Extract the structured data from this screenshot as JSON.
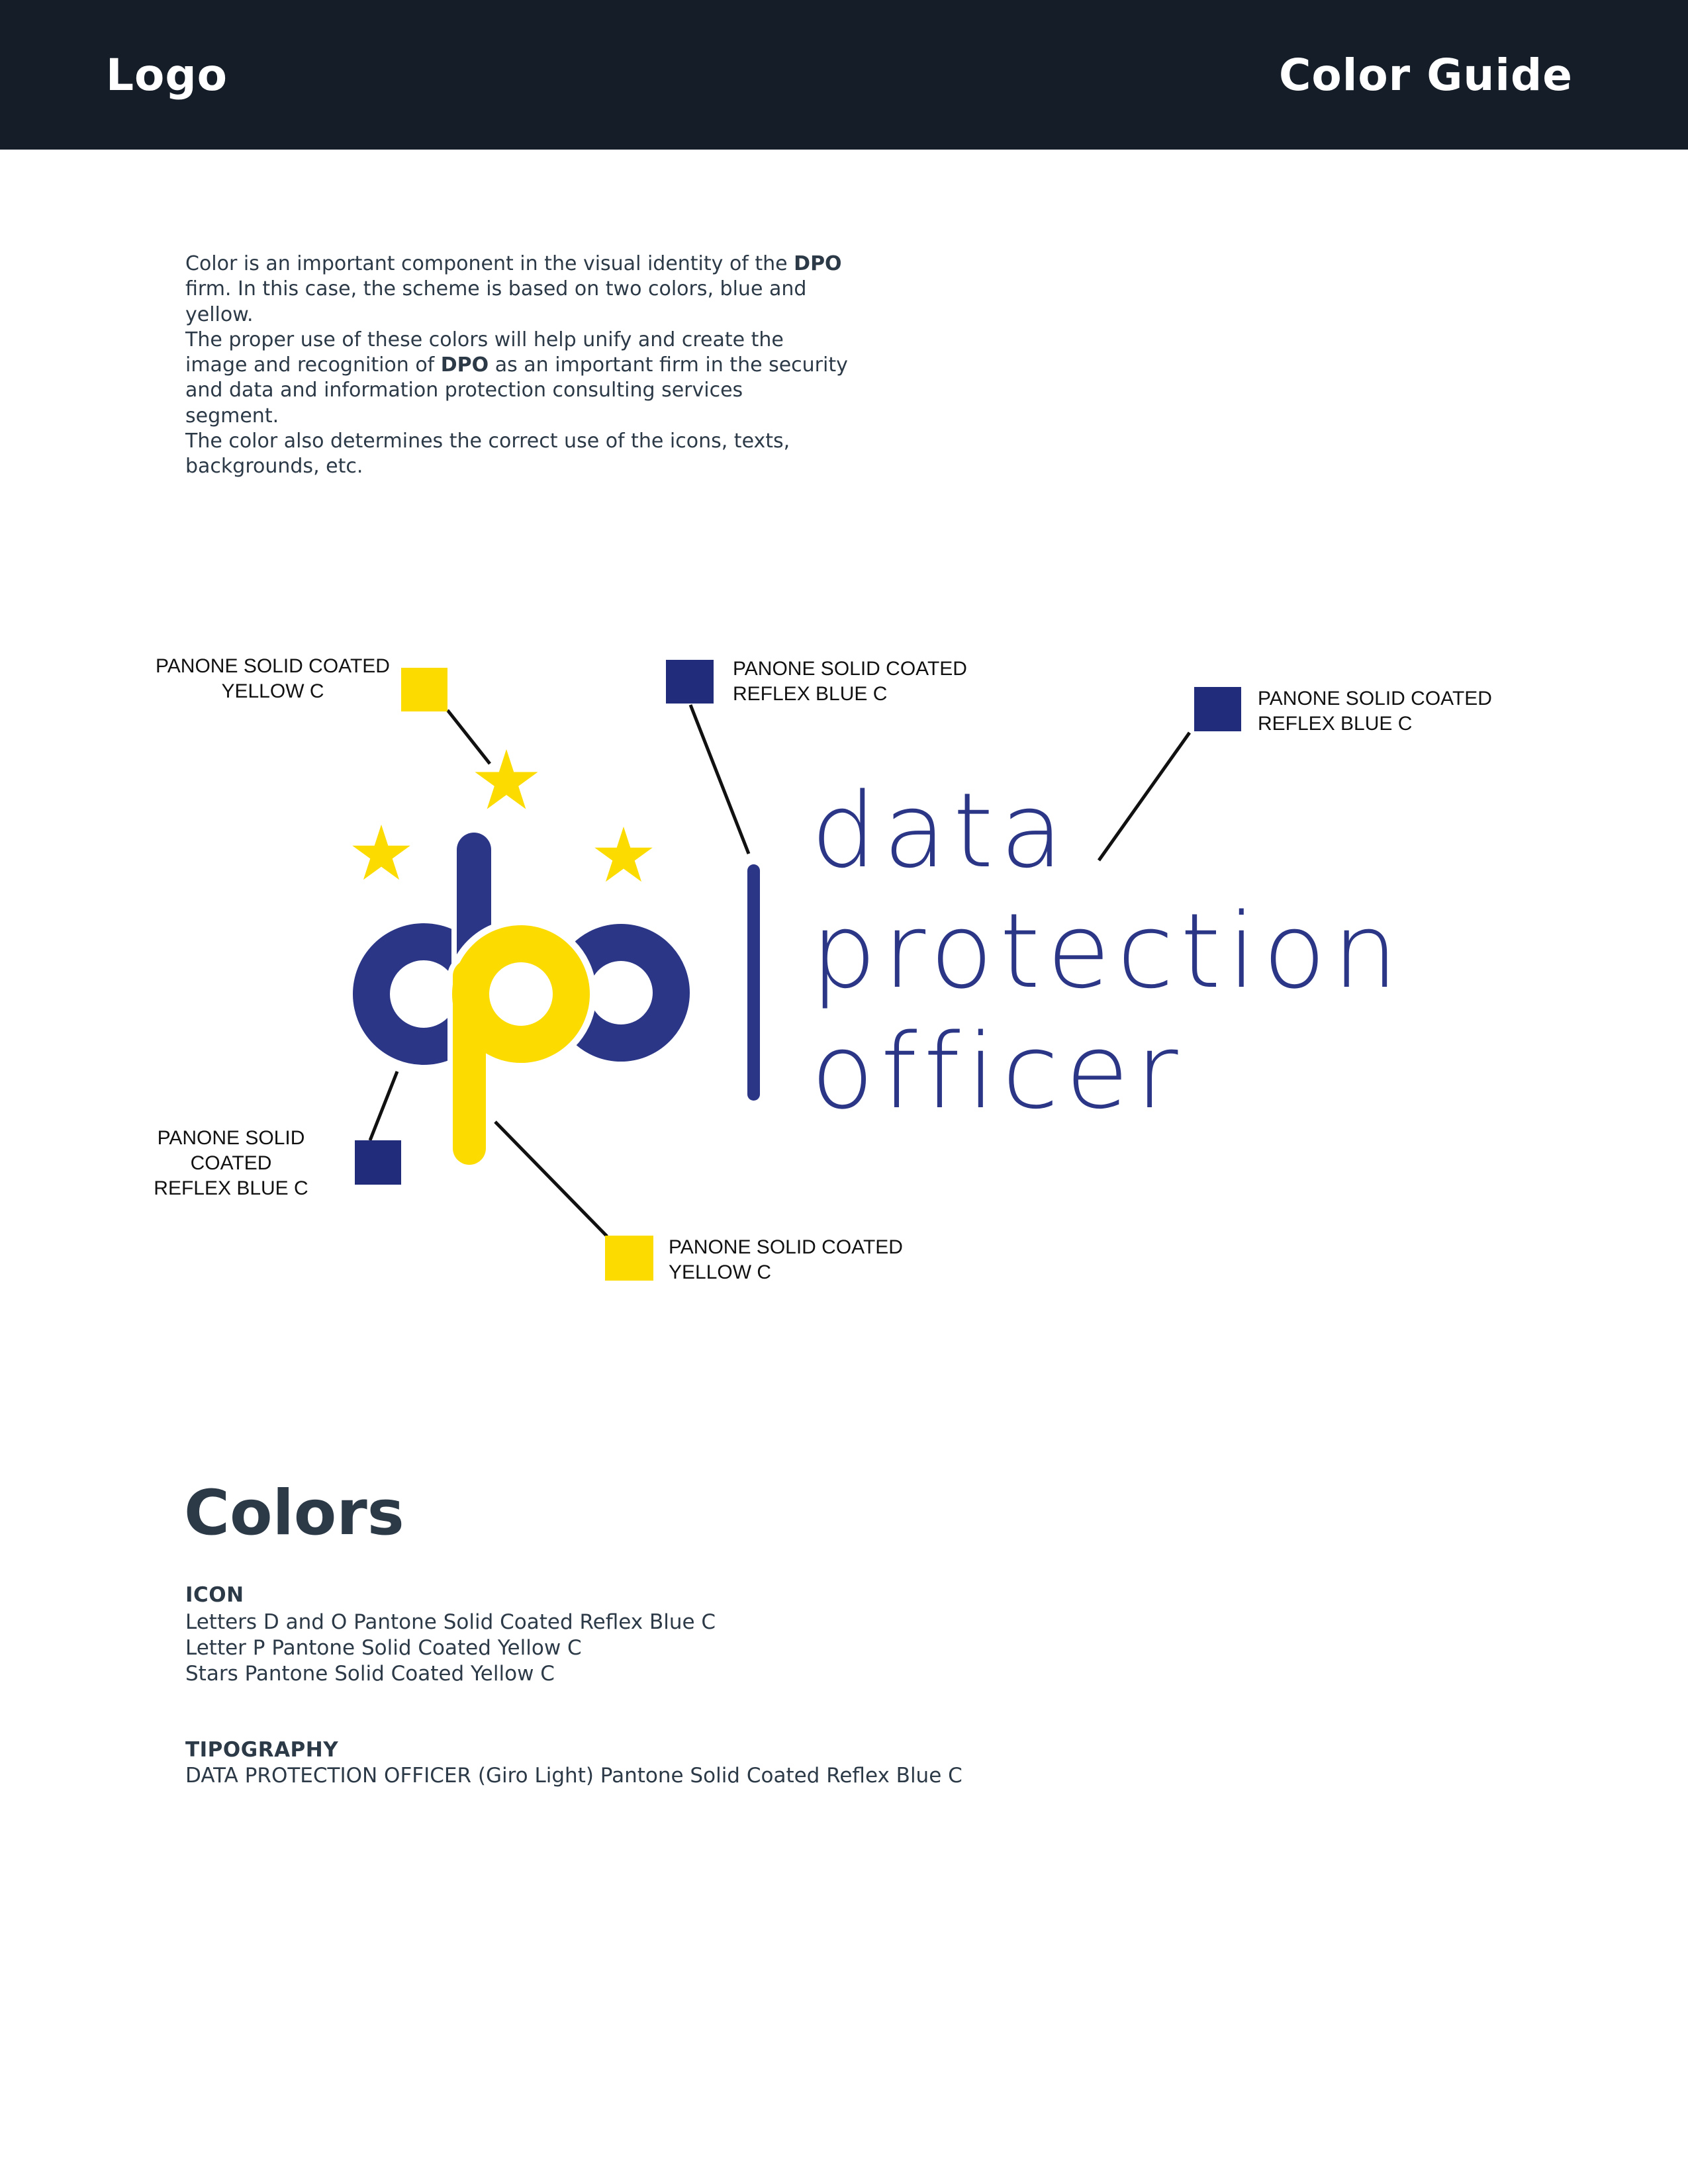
{
  "header": {
    "logo_text": "Logo",
    "title": "Color Guide"
  },
  "intro": {
    "bold_word": "DPO",
    "lines": [
      "Color is an important component in the visual identity of the DPO",
      "firm. In this case, the scheme is based on two colors, blue and",
      "yellow.",
      "The proper use of these colors will help unify and create the",
      "image and recognition of DPO as an important firm in the security",
      "and data and information protection consulting services",
      "segment.",
      "The color also determines the correct use of the icons, texts,",
      "backgrounds, etc."
    ]
  },
  "colors": {
    "header_bg": "#141d28",
    "text_dark": "#2c3947",
    "logo_blue": "#2b3687",
    "swatch_blue": "#212d7b",
    "yellow": "#fcdb00",
    "line_black": "#111111"
  },
  "callouts": [
    {
      "line1": "PANONE SOLID COATED",
      "line2": "YELLOW C",
      "swatch": "yellow"
    },
    {
      "line1": "PANONE SOLID COATED",
      "line2": "REFLEX BLUE C",
      "swatch": "blue"
    },
    {
      "line1": "PANONE SOLID COATED",
      "line2": "REFLEX BLUE C",
      "swatch": "blue"
    },
    {
      "line1": "PANONE SOLID COATED",
      "line2": "REFLEX BLUE C",
      "swatch": "blue"
    },
    {
      "line1": "PANONE SOLID COATED",
      "line2": "YELLOW C",
      "swatch": "yellow"
    }
  ],
  "wordmark": {
    "line1": "data",
    "line2": "protection",
    "line3": "officer"
  },
  "colors_section": {
    "heading": "Colors",
    "icon_label": "ICON",
    "icon_lines": [
      "Letters D and O Pantone Solid Coated Reflex Blue C",
      "Letter P Pantone Solid Coated Yellow C",
      "Stars Pantone Solid Coated Yellow C"
    ],
    "typography_label": "TIPOGRAPHY",
    "typography_line": "DATA PROTECTION OFFICER (Giro Light) Pantone Solid Coated Reflex Blue C"
  }
}
